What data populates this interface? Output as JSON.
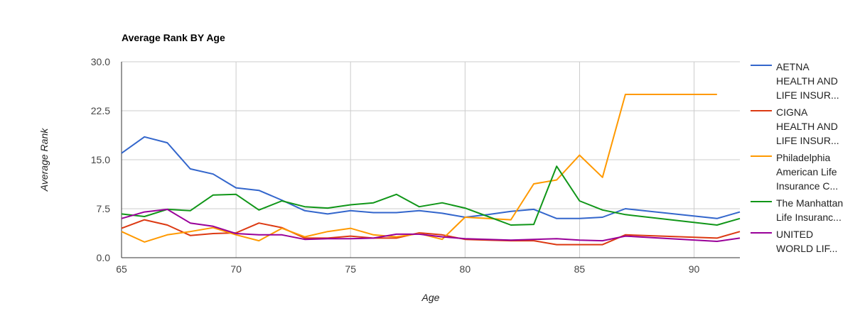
{
  "chart_data": {
    "type": "line",
    "title": "Average Rank BY Age",
    "xlabel": "Age",
    "ylabel": "Average Rank",
    "xlim": [
      65,
      92
    ],
    "ylim": [
      0,
      30
    ],
    "x_ticks": [
      "65",
      "70",
      "75",
      "80",
      "85",
      "90"
    ],
    "y_ticks": [
      "0.0",
      "7.5",
      "15.0",
      "22.5",
      "30.0"
    ],
    "grid": true,
    "legend_position": "right",
    "series": [
      {
        "name": "AETNA HEALTH AND LIFE INSURANCE COMPANY",
        "legend_lines": [
          "AETNA",
          "HEALTH AND",
          "LIFE INSUR..."
        ],
        "color": "#3366cc",
        "points": [
          [
            65,
            16
          ],
          [
            66,
            18.5
          ],
          [
            67,
            17.6
          ],
          [
            68,
            13.6
          ],
          [
            69,
            12.8
          ],
          [
            70,
            10.7
          ],
          [
            71,
            10.3
          ],
          [
            72,
            8.8
          ],
          [
            73,
            7.2
          ],
          [
            74,
            6.7
          ],
          [
            75,
            7.2
          ],
          [
            76,
            6.9
          ],
          [
            77,
            6.9
          ],
          [
            78,
            7.2
          ],
          [
            79,
            6.8
          ],
          [
            80,
            6.2
          ],
          [
            81,
            6.6
          ],
          [
            82,
            7.1
          ],
          [
            83,
            7.4
          ],
          [
            84,
            6
          ],
          [
            85,
            6
          ],
          [
            86,
            6.2
          ],
          [
            87,
            7.5
          ],
          [
            91,
            6
          ],
          [
            92,
            7
          ]
        ]
      },
      {
        "name": "CIGNA HEALTH AND LIFE INSURANCE COMPANY",
        "legend_lines": [
          "CIGNA",
          "HEALTH AND",
          "LIFE INSUR..."
        ],
        "color": "#dc3912",
        "points": [
          [
            65,
            4.5
          ],
          [
            66,
            5.8
          ],
          [
            67,
            5
          ],
          [
            68,
            3.4
          ],
          [
            69,
            3.7
          ],
          [
            70,
            3.8
          ],
          [
            71,
            5.3
          ],
          [
            72,
            4.6
          ],
          [
            73,
            3
          ],
          [
            74,
            3
          ],
          [
            75,
            3.3
          ],
          [
            76,
            3
          ],
          [
            77,
            3
          ],
          [
            78,
            3.8
          ],
          [
            79,
            3.5
          ],
          [
            80,
            2.8
          ],
          [
            81,
            2.7
          ],
          [
            82,
            2.6
          ],
          [
            83,
            2.6
          ],
          [
            84,
            2
          ],
          [
            85,
            2
          ],
          [
            86,
            2
          ],
          [
            87,
            3.5
          ],
          [
            91,
            3
          ],
          [
            92,
            4
          ]
        ]
      },
      {
        "name": "Philadelphia American Life Insurance Company",
        "legend_lines": [
          "Philadelphia",
          "American Life",
          "Insurance C..."
        ],
        "color": "#ff9900",
        "points": [
          [
            65,
            4
          ],
          [
            66,
            2.4
          ],
          [
            67,
            3.5
          ],
          [
            68,
            4
          ],
          [
            69,
            4.6
          ],
          [
            70,
            3.5
          ],
          [
            71,
            2.6
          ],
          [
            72,
            4.5
          ],
          [
            73,
            3.2
          ],
          [
            74,
            4
          ],
          [
            75,
            4.5
          ],
          [
            76,
            3.5
          ],
          [
            77,
            3.2
          ],
          [
            78,
            3.7
          ],
          [
            79,
            2.8
          ],
          [
            80,
            6.2
          ],
          [
            81,
            6
          ],
          [
            82,
            5.8
          ],
          [
            83,
            11.3
          ],
          [
            84,
            11.9
          ],
          [
            85,
            15.7
          ],
          [
            86,
            12.3
          ],
          [
            87,
            25
          ],
          [
            91,
            25
          ]
        ]
      },
      {
        "name": "The Manhattan Life Insurance Company",
        "legend_lines": [
          "The Manhattan",
          "Life Insuranc..."
        ],
        "color": "#109618",
        "points": [
          [
            65,
            6.7
          ],
          [
            66,
            6.3
          ],
          [
            67,
            7.4
          ],
          [
            68,
            7.2
          ],
          [
            69,
            9.6
          ],
          [
            70,
            9.7
          ],
          [
            71,
            7.3
          ],
          [
            72,
            8.7
          ],
          [
            73,
            7.8
          ],
          [
            74,
            7.6
          ],
          [
            75,
            8.1
          ],
          [
            76,
            8.4
          ],
          [
            77,
            9.7
          ],
          [
            78,
            7.8
          ],
          [
            79,
            8.4
          ],
          [
            80,
            7.6
          ],
          [
            81,
            6.3
          ],
          [
            82,
            5
          ],
          [
            83,
            5.1
          ],
          [
            84,
            14
          ],
          [
            85,
            8.7
          ],
          [
            86,
            7.3
          ],
          [
            87,
            6.6
          ],
          [
            91,
            5
          ],
          [
            92,
            6
          ]
        ]
      },
      {
        "name": "UNITED WORLD LIFE INSURANCE COMPANY",
        "legend_lines": [
          "UNITED",
          "WORLD LIF..."
        ],
        "color": "#990099",
        "points": [
          [
            65,
            6
          ],
          [
            66,
            7
          ],
          [
            67,
            7.4
          ],
          [
            68,
            5.3
          ],
          [
            69,
            4.8
          ],
          [
            70,
            3.7
          ],
          [
            71,
            3.5
          ],
          [
            72,
            3.5
          ],
          [
            73,
            2.8
          ],
          [
            74,
            2.9
          ],
          [
            75,
            2.9
          ],
          [
            76,
            3
          ],
          [
            77,
            3.6
          ],
          [
            78,
            3.6
          ],
          [
            79,
            3.2
          ],
          [
            80,
            2.9
          ],
          [
            81,
            2.8
          ],
          [
            82,
            2.7
          ],
          [
            83,
            2.8
          ],
          [
            84,
            2.9
          ],
          [
            85,
            2.7
          ],
          [
            86,
            2.6
          ],
          [
            87,
            3.3
          ],
          [
            91,
            2.5
          ],
          [
            92,
            3
          ]
        ]
      }
    ]
  }
}
